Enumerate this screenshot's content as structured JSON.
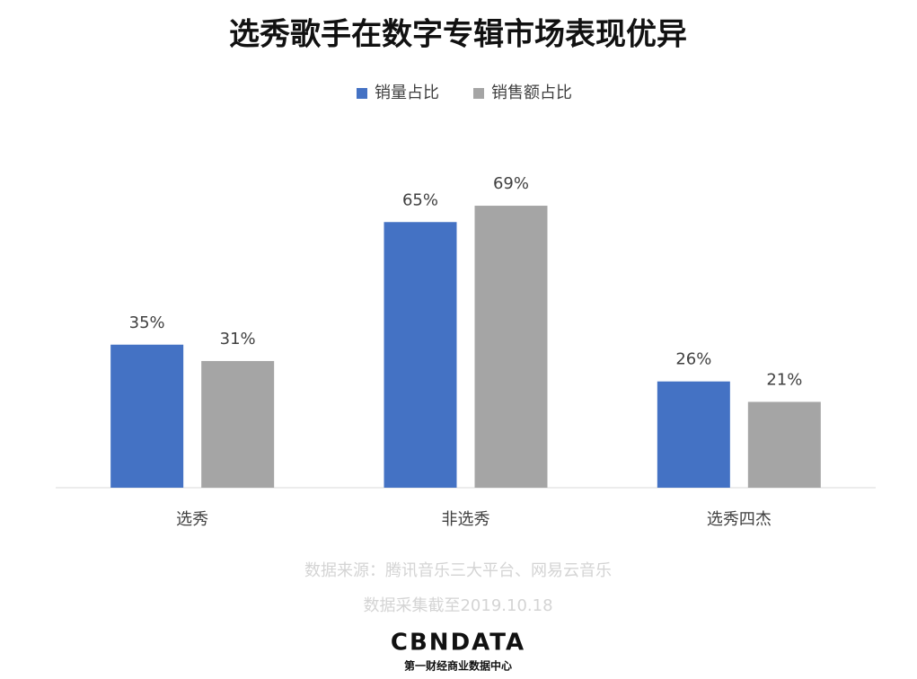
{
  "chart_data": {
    "type": "bar",
    "title": "选秀歌手在数字专辑市场表现优异",
    "categories": [
      "选秀",
      "非选秀",
      "选秀四杰"
    ],
    "series": [
      {
        "name": "销量占比",
        "color": "#4472c4",
        "values": [
          35,
          65,
          26
        ],
        "value_labels": [
          "35%",
          "65%",
          "26%"
        ]
      },
      {
        "name": "销售额占比",
        "color": "#a5a5a5",
        "values": [
          31,
          69,
          21
        ],
        "value_labels": [
          "31%",
          "69%",
          "21%"
        ]
      }
    ],
    "ylim": [
      0,
      100
    ],
    "legend": "top"
  },
  "notes": [
    "数据来源：腾讯音乐三大平台、网易云音乐",
    "数据采集截至2019.10.18"
  ],
  "logo": {
    "name": "CBNDATA",
    "subtitle": "第一财经商业数据中心"
  }
}
